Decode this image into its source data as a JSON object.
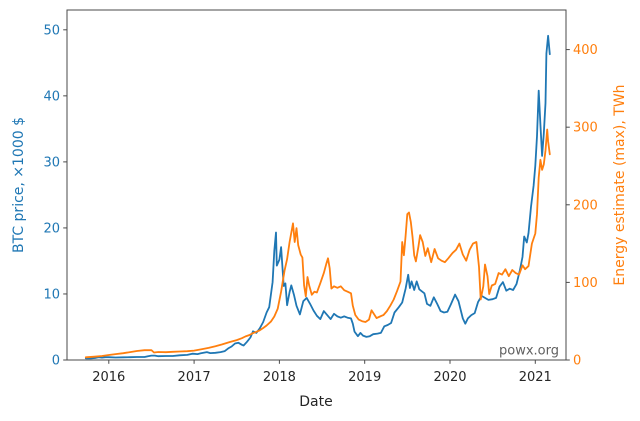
{
  "figure": {
    "xlabel": "Date",
    "ylabel_left": "BTC price, ×1000 $",
    "ylabel_right": "Energy estimate (max), TWh",
    "watermark": "powx.org"
  },
  "colors": {
    "left_axis": "#1f77b4",
    "right_axis": "#ff7f0e",
    "axis_line": "#4a4a4a",
    "x_tick_label": "#262626",
    "watermark": "#606060",
    "background": "#ffffff"
  },
  "chart_data": {
    "type": "line",
    "title": "",
    "xlabel": "Date",
    "ylabel_left": "BTC price, ×1000 $",
    "ylabel_right": "Energy estimate (max), TWh",
    "grid": false,
    "legend": "none",
    "watermark": "powx.org",
    "x_ticks": [
      2016,
      2017,
      2018,
      2019,
      2020,
      2021
    ],
    "y_ticks_left": [
      0,
      10,
      20,
      30,
      40,
      50
    ],
    "y_ticks_right": [
      0,
      100,
      200,
      300,
      400
    ],
    "xlim": [
      2015.51,
      2021.36
    ],
    "ylim_left": [
      0,
      53
    ],
    "ylim_right": [
      0,
      451
    ],
    "series": [
      {
        "name": "BTC price, ×1000 $",
        "axis": "left",
        "color": "#1f77b4",
        "points": [
          [
            2015.73,
            0.24
          ],
          [
            2015.79,
            0.26
          ],
          [
            2015.84,
            0.31
          ],
          [
            2015.88,
            0.42
          ],
          [
            2015.92,
            0.36
          ],
          [
            2015.96,
            0.42
          ],
          [
            2016.0,
            0.43
          ],
          [
            2016.08,
            0.38
          ],
          [
            2016.17,
            0.41
          ],
          [
            2016.25,
            0.42
          ],
          [
            2016.33,
            0.45
          ],
          [
            2016.42,
            0.45
          ],
          [
            2016.46,
            0.58
          ],
          [
            2016.5,
            0.67
          ],
          [
            2016.54,
            0.66
          ],
          [
            2016.58,
            0.58
          ],
          [
            2016.67,
            0.6
          ],
          [
            2016.75,
            0.61
          ],
          [
            2016.83,
            0.71
          ],
          [
            2016.92,
            0.77
          ],
          [
            2016.98,
            0.96
          ],
          [
            2017.04,
            0.9
          ],
          [
            2017.08,
            1.01
          ],
          [
            2017.15,
            1.19
          ],
          [
            2017.19,
            1.05
          ],
          [
            2017.25,
            1.09
          ],
          [
            2017.31,
            1.19
          ],
          [
            2017.36,
            1.35
          ],
          [
            2017.4,
            1.75
          ],
          [
            2017.44,
            2.05
          ],
          [
            2017.48,
            2.5
          ],
          [
            2017.52,
            2.6
          ],
          [
            2017.56,
            2.3
          ],
          [
            2017.58,
            2.2
          ],
          [
            2017.62,
            2.75
          ],
          [
            2017.66,
            3.4
          ],
          [
            2017.69,
            4.35
          ],
          [
            2017.73,
            4.1
          ],
          [
            2017.77,
            4.8
          ],
          [
            2017.81,
            5.75
          ],
          [
            2017.85,
            7.2
          ],
          [
            2017.88,
            8.0
          ],
          [
            2017.9,
            9.9
          ],
          [
            2017.92,
            11.8
          ],
          [
            2017.94,
            16.5
          ],
          [
            2017.96,
            19.3
          ],
          [
            2017.97,
            14.3
          ],
          [
            2018.0,
            15.2
          ],
          [
            2018.02,
            17.1
          ],
          [
            2018.05,
            11.2
          ],
          [
            2018.07,
            11.6
          ],
          [
            2018.09,
            8.3
          ],
          [
            2018.12,
            10.3
          ],
          [
            2018.14,
            11.3
          ],
          [
            2018.17,
            9.9
          ],
          [
            2018.2,
            8.2
          ],
          [
            2018.24,
            6.9
          ],
          [
            2018.28,
            8.9
          ],
          [
            2018.32,
            9.4
          ],
          [
            2018.36,
            8.5
          ],
          [
            2018.4,
            7.5
          ],
          [
            2018.44,
            6.7
          ],
          [
            2018.48,
            6.2
          ],
          [
            2018.52,
            7.4
          ],
          [
            2018.56,
            6.8
          ],
          [
            2018.6,
            6.2
          ],
          [
            2018.64,
            7.0
          ],
          [
            2018.68,
            6.6
          ],
          [
            2018.72,
            6.4
          ],
          [
            2018.76,
            6.6
          ],
          [
            2018.8,
            6.4
          ],
          [
            2018.84,
            6.3
          ],
          [
            2018.86,
            5.5
          ],
          [
            2018.88,
            4.3
          ],
          [
            2018.92,
            3.6
          ],
          [
            2018.95,
            4.1
          ],
          [
            2018.98,
            3.7
          ],
          [
            2019.02,
            3.5
          ],
          [
            2019.06,
            3.6
          ],
          [
            2019.1,
            3.9
          ],
          [
            2019.15,
            4.0
          ],
          [
            2019.19,
            4.1
          ],
          [
            2019.23,
            5.1
          ],
          [
            2019.27,
            5.3
          ],
          [
            2019.31,
            5.6
          ],
          [
            2019.35,
            7.2
          ],
          [
            2019.4,
            8.0
          ],
          [
            2019.44,
            8.7
          ],
          [
            2019.48,
            10.8
          ],
          [
            2019.51,
            12.9
          ],
          [
            2019.53,
            10.9
          ],
          [
            2019.55,
            11.9
          ],
          [
            2019.58,
            10.6
          ],
          [
            2019.61,
            11.9
          ],
          [
            2019.64,
            10.7
          ],
          [
            2019.67,
            10.4
          ],
          [
            2019.7,
            10.1
          ],
          [
            2019.73,
            8.5
          ],
          [
            2019.77,
            8.2
          ],
          [
            2019.81,
            9.5
          ],
          [
            2019.85,
            8.5
          ],
          [
            2019.89,
            7.4
          ],
          [
            2019.93,
            7.2
          ],
          [
            2019.97,
            7.3
          ],
          [
            2020.01,
            8.4
          ],
          [
            2020.06,
            9.9
          ],
          [
            2020.1,
            8.9
          ],
          [
            2020.15,
            6.3
          ],
          [
            2020.18,
            5.5
          ],
          [
            2020.21,
            6.3
          ],
          [
            2020.25,
            6.8
          ],
          [
            2020.29,
            7.1
          ],
          [
            2020.33,
            8.8
          ],
          [
            2020.37,
            9.7
          ],
          [
            2020.41,
            9.4
          ],
          [
            2020.45,
            9.1
          ],
          [
            2020.5,
            9.2
          ],
          [
            2020.54,
            9.4
          ],
          [
            2020.58,
            11.1
          ],
          [
            2020.62,
            11.8
          ],
          [
            2020.66,
            10.5
          ],
          [
            2020.7,
            10.8
          ],
          [
            2020.74,
            10.6
          ],
          [
            2020.78,
            11.5
          ],
          [
            2020.82,
            13.6
          ],
          [
            2020.85,
            15.6
          ],
          [
            2020.87,
            18.7
          ],
          [
            2020.9,
            17.8
          ],
          [
            2020.92,
            19.2
          ],
          [
            2020.95,
            23.2
          ],
          [
            2020.98,
            26.4
          ],
          [
            2021.0,
            29.4
          ],
          [
            2021.02,
            33.9
          ],
          [
            2021.04,
            40.8
          ],
          [
            2021.06,
            35.7
          ],
          [
            2021.08,
            30.9
          ],
          [
            2021.1,
            34.3
          ],
          [
            2021.12,
            38.9
          ],
          [
            2021.13,
            46.4
          ],
          [
            2021.15,
            49.1
          ],
          [
            2021.17,
            46.3
          ]
        ]
      },
      {
        "name": "Energy estimate (max), TWh",
        "axis": "right",
        "color": "#ff7f0e",
        "points": [
          [
            2015.73,
            3.5
          ],
          [
            2015.83,
            4.3
          ],
          [
            2015.92,
            5.2
          ],
          [
            2016.0,
            6.5
          ],
          [
            2016.08,
            7.6
          ],
          [
            2016.17,
            8.8
          ],
          [
            2016.25,
            10.2
          ],
          [
            2016.33,
            11.6
          ],
          [
            2016.42,
            12.6
          ],
          [
            2016.5,
            12.8
          ],
          [
            2016.53,
            9.7
          ],
          [
            2016.58,
            10.3
          ],
          [
            2016.67,
            10.1
          ],
          [
            2016.75,
            10.6
          ],
          [
            2016.83,
            10.9
          ],
          [
            2016.92,
            11.3
          ],
          [
            2017.0,
            12.1
          ],
          [
            2017.08,
            13.6
          ],
          [
            2017.17,
            15.6
          ],
          [
            2017.25,
            17.6
          ],
          [
            2017.33,
            20.1
          ],
          [
            2017.42,
            23.2
          ],
          [
            2017.5,
            25.6
          ],
          [
            2017.56,
            28.1
          ],
          [
            2017.6,
            30.3
          ],
          [
            2017.65,
            32.2
          ],
          [
            2017.69,
            34.6
          ],
          [
            2017.73,
            36.4
          ],
          [
            2017.77,
            38.3
          ],
          [
            2017.81,
            41.2
          ],
          [
            2017.85,
            44.5
          ],
          [
            2017.9,
            49.5
          ],
          [
            2017.94,
            56.0
          ],
          [
            2017.98,
            66.0
          ],
          [
            2018.02,
            88.0
          ],
          [
            2018.06,
            115.0
          ],
          [
            2018.09,
            130.0
          ],
          [
            2018.12,
            152.0
          ],
          [
            2018.14,
            164.0
          ],
          [
            2018.16,
            176.0
          ],
          [
            2018.18,
            152.0
          ],
          [
            2018.2,
            170.0
          ],
          [
            2018.22,
            148.0
          ],
          [
            2018.25,
            136.0
          ],
          [
            2018.27,
            132.0
          ],
          [
            2018.29,
            96.0
          ],
          [
            2018.31,
            82.0
          ],
          [
            2018.33,
            107.0
          ],
          [
            2018.35,
            96.0
          ],
          [
            2018.38,
            84.0
          ],
          [
            2018.41,
            88.0
          ],
          [
            2018.44,
            87.0
          ],
          [
            2018.48,
            99.0
          ],
          [
            2018.52,
            112.0
          ],
          [
            2018.55,
            124.0
          ],
          [
            2018.57,
            131.0
          ],
          [
            2018.59,
            118.0
          ],
          [
            2018.61,
            92.0
          ],
          [
            2018.64,
            95.0
          ],
          [
            2018.68,
            93.0
          ],
          [
            2018.72,
            95.0
          ],
          [
            2018.76,
            90.0
          ],
          [
            2018.8,
            88.0
          ],
          [
            2018.84,
            86.0
          ],
          [
            2018.86,
            70.0
          ],
          [
            2018.89,
            58.0
          ],
          [
            2018.93,
            52.0
          ],
          [
            2018.97,
            50.0
          ],
          [
            2019.01,
            49.0
          ],
          [
            2019.05,
            52.0
          ],
          [
            2019.08,
            64.0
          ],
          [
            2019.11,
            59.0
          ],
          [
            2019.14,
            54.0
          ],
          [
            2019.18,
            56.0
          ],
          [
            2019.22,
            58.0
          ],
          [
            2019.26,
            63.0
          ],
          [
            2019.3,
            70.0
          ],
          [
            2019.34,
            78.0
          ],
          [
            2019.38,
            89.0
          ],
          [
            2019.42,
            101.0
          ],
          [
            2019.44,
            152.0
          ],
          [
            2019.46,
            135.0
          ],
          [
            2019.48,
            160.0
          ],
          [
            2019.5,
            188.0
          ],
          [
            2019.52,
            190.0
          ],
          [
            2019.54,
            178.0
          ],
          [
            2019.56,
            159.0
          ],
          [
            2019.58,
            135.0
          ],
          [
            2019.6,
            127.0
          ],
          [
            2019.63,
            146.0
          ],
          [
            2019.65,
            161.0
          ],
          [
            2019.68,
            152.0
          ],
          [
            2019.71,
            134.0
          ],
          [
            2019.74,
            144.0
          ],
          [
            2019.78,
            126.0
          ],
          [
            2019.82,
            143.0
          ],
          [
            2019.86,
            131.0
          ],
          [
            2019.9,
            128.0
          ],
          [
            2019.94,
            126.0
          ],
          [
            2019.98,
            131.0
          ],
          [
            2020.03,
            138.0
          ],
          [
            2020.07,
            142.0
          ],
          [
            2020.11,
            150.0
          ],
          [
            2020.15,
            136.0
          ],
          [
            2020.19,
            128.0
          ],
          [
            2020.23,
            142.0
          ],
          [
            2020.27,
            150.0
          ],
          [
            2020.31,
            152.0
          ],
          [
            2020.34,
            120.0
          ],
          [
            2020.36,
            78.0
          ],
          [
            2020.39,
            95.0
          ],
          [
            2020.41,
            123.0
          ],
          [
            2020.44,
            108.0
          ],
          [
            2020.46,
            85.0
          ],
          [
            2020.49,
            96.0
          ],
          [
            2020.53,
            98.0
          ],
          [
            2020.57,
            112.0
          ],
          [
            2020.61,
            110.0
          ],
          [
            2020.65,
            117.0
          ],
          [
            2020.69,
            108.0
          ],
          [
            2020.73,
            116.0
          ],
          [
            2020.77,
            112.0
          ],
          [
            2020.81,
            110.0
          ],
          [
            2020.85,
            122.0
          ],
          [
            2020.88,
            117.0
          ],
          [
            2020.92,
            121.0
          ],
          [
            2020.96,
            150.0
          ],
          [
            2021.0,
            163.0
          ],
          [
            2021.02,
            188.0
          ],
          [
            2021.04,
            235.0
          ],
          [
            2021.06,
            258.0
          ],
          [
            2021.08,
            245.0
          ],
          [
            2021.1,
            252.0
          ],
          [
            2021.12,
            270.0
          ],
          [
            2021.14,
            297.0
          ],
          [
            2021.15,
            282.0
          ],
          [
            2021.17,
            265.0
          ]
        ]
      }
    ]
  }
}
